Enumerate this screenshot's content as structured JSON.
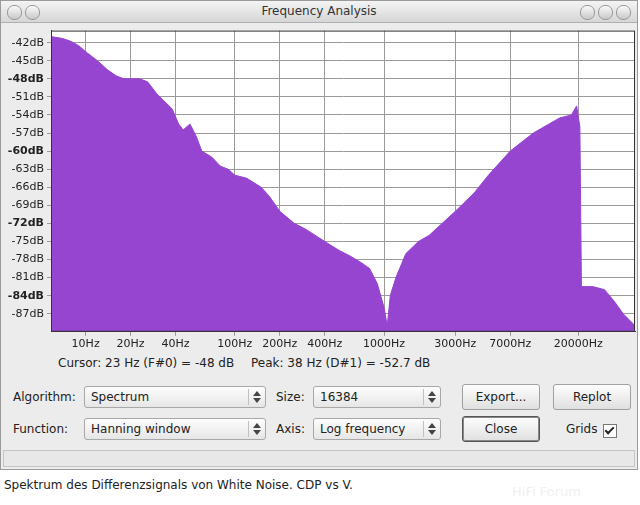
{
  "window": {
    "title": "Frequency Analysis"
  },
  "chart_data": {
    "type": "area",
    "color": "#9545d0",
    "log": "x",
    "grid": true,
    "x": [
      5.86,
      7,
      8,
      9,
      10,
      12,
      14,
      16,
      18,
      20,
      23,
      26,
      30,
      33,
      38,
      42,
      45,
      50,
      55,
      60,
      70,
      80,
      90,
      100,
      120,
      150,
      170,
      200,
      250,
      300,
      400,
      500,
      600,
      700,
      800,
      900,
      1000,
      1050,
      1100,
      1200,
      1400,
      1700,
      2000,
      3000,
      4000,
      5000,
      7000,
      10000,
      15000,
      18000,
      19500,
      20500,
      21000,
      22000,
      25000,
      30000,
      35000,
      40000,
      48000
    ],
    "values": [
      -41,
      -41.3,
      -41.8,
      -42.5,
      -43.5,
      -45,
      -46.5,
      -47.5,
      -48,
      -48,
      -48,
      -48.5,
      -50.5,
      -51.5,
      -53,
      -55.5,
      -56.5,
      -55.5,
      -57.5,
      -60,
      -61,
      -62.5,
      -63,
      -64,
      -64.5,
      -66,
      -67.5,
      -70,
      -72,
      -73,
      -75,
      -76.5,
      -77.5,
      -78.5,
      -79.5,
      -82,
      -86,
      -89,
      -84,
      -81,
      -77,
      -75,
      -74,
      -70,
      -67,
      -64,
      -60,
      -57,
      -54.5,
      -54,
      -52.5,
      -56,
      -82.5,
      -82.5,
      -82.5,
      -83,
      -85,
      -87,
      -89
    ],
    "xlim": [
      5.86,
      48000
    ],
    "xticks": [
      {
        "value": 10,
        "label": "10Hz"
      },
      {
        "value": 20,
        "label": "20Hz"
      },
      {
        "value": 40,
        "label": "40Hz"
      },
      {
        "value": 100,
        "label": "100Hz"
      },
      {
        "value": 200,
        "label": "200Hz"
      },
      {
        "value": 400,
        "label": "400Hz"
      },
      {
        "value": 1000,
        "label": "1000Hz"
      },
      {
        "value": 3000,
        "label": "3000Hz"
      },
      {
        "value": 7000,
        "label": "7000Hz"
      },
      {
        "value": 20000,
        "label": "20000Hz"
      }
    ],
    "ylim": [
      -90,
      -40
    ],
    "yticks": [
      {
        "value": -42,
        "label": "-42dB"
      },
      {
        "value": -45,
        "label": "-45dB"
      },
      {
        "value": -48,
        "label": "-48dB"
      },
      {
        "value": -51,
        "label": "-51dB"
      },
      {
        "value": -54,
        "label": "-54dB"
      },
      {
        "value": -57,
        "label": "-57dB"
      },
      {
        "value": -60,
        "label": "-60dB"
      },
      {
        "value": -63,
        "label": "-63dB"
      },
      {
        "value": -66,
        "label": "-66dB"
      },
      {
        "value": -69,
        "label": "-69dB"
      },
      {
        "value": -72,
        "label": "-72dB"
      },
      {
        "value": -75,
        "label": "-75dB"
      },
      {
        "value": -78,
        "label": "-78dB"
      },
      {
        "value": -81,
        "label": "-81dB"
      },
      {
        "value": -84,
        "label": "-84dB"
      },
      {
        "value": -87,
        "label": "-87dB"
      }
    ]
  },
  "readout": {
    "cursor": "Cursor: 23 Hz (F#0) = -48 dB",
    "peak": "Peak: 38 Hz (D#1) = -52.7 dB"
  },
  "controls": {
    "algorithm": {
      "label": "Algorithm:",
      "value": "Spectrum"
    },
    "size": {
      "label": "Size:",
      "value": "16384"
    },
    "function": {
      "label": "Function:",
      "value": "Hanning window"
    },
    "axis": {
      "label": "Axis:",
      "value": "Log frequency"
    },
    "buttons": {
      "export": "Export...",
      "replot": "Replot",
      "close": "Close"
    },
    "grids": {
      "label": "Grids",
      "checked": true
    }
  },
  "caption": "Spektrum des Differenzsignals von White Noise. CDP vs V.",
  "watermark": "HiFi Forum"
}
